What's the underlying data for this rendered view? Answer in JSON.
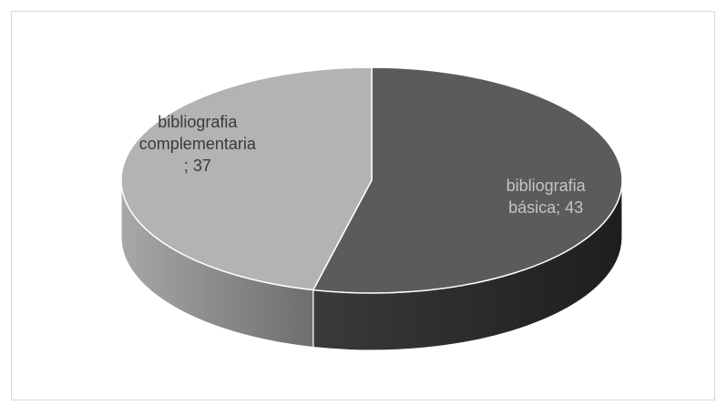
{
  "chart_data": {
    "type": "pie",
    "categories": [
      "bibliografia básica",
      "bibliografia complementaria"
    ],
    "values": [
      43,
      37
    ],
    "value_labels": [
      "bibliografia básica; 43",
      "bibliografia complementaria; 37"
    ],
    "colors": [
      "#5b5b5b",
      "#b3b3b3"
    ],
    "label_colors": [
      "#c4c4c4",
      "#3a3a3a"
    ]
  }
}
